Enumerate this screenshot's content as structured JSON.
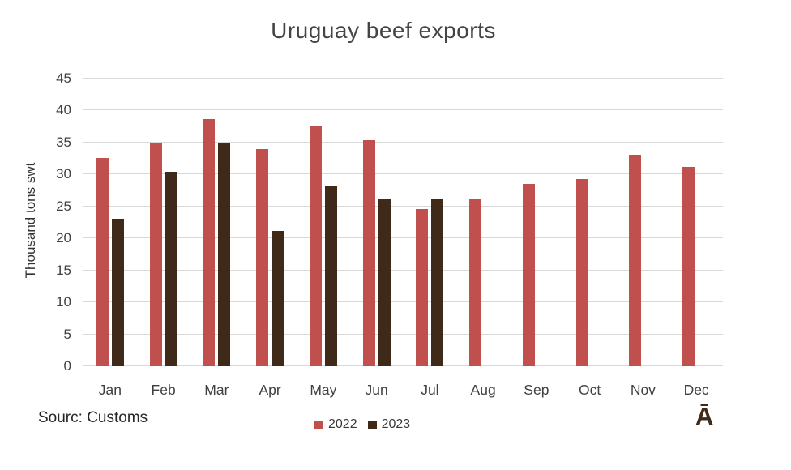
{
  "chart_data": {
    "type": "bar",
    "title": "Uruguay beef exports",
    "xlabel": "",
    "ylabel": "Thousand tons swt",
    "ylim": [
      0,
      45
    ],
    "ytick_interval": 5,
    "grid": "horizontal gridlines on",
    "legend_position": "bottom-center",
    "categories": [
      "Jan",
      "Feb",
      "Mar",
      "Apr",
      "May",
      "Jun",
      "Jul",
      "Aug",
      "Sep",
      "Oct",
      "Nov",
      "Dec"
    ],
    "series": [
      {
        "name": "2022",
        "color": "#c0504d",
        "values": [
          32.5,
          34.8,
          38.5,
          33.9,
          37.4,
          35.3,
          24.5,
          26.1,
          28.4,
          29.2,
          33.0,
          31.1
        ]
      },
      {
        "name": "2023",
        "color": "#3f2a1a",
        "values": [
          23.0,
          30.3,
          34.7,
          21.1,
          28.2,
          26.2,
          26.0,
          null,
          null,
          null,
          null,
          null
        ]
      }
    ]
  },
  "footer": {
    "source_label": "Sourc: Customs",
    "logo_glyph": "Ā"
  },
  "colors": {
    "gridline": "#d9d9d9",
    "text": "#404040",
    "title": "#444444"
  }
}
